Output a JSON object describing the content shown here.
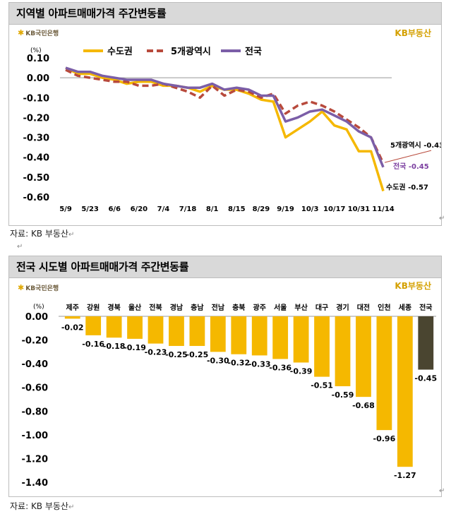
{
  "chart_data": [
    {
      "type": "line",
      "title": "지역별 아파트매매가격 주간변동률",
      "unit_label": "(%)",
      "ylim": [
        -0.6,
        0.1
      ],
      "y_ticks": [
        "0.10",
        "0.00",
        "-0.10",
        "-0.20",
        "-0.30",
        "-0.40",
        "-0.50",
        "-0.60"
      ],
      "x_tick_labels": [
        "5/9",
        "5/23",
        "6/6",
        "6/20",
        "7/4",
        "7/18",
        "8/1",
        "8/15",
        "8/29",
        "9/19",
        "10/3",
        "10/17",
        "10/31",
        "11/14"
      ],
      "x": [
        "5/9",
        "5/16",
        "5/23",
        "5/30",
        "6/6",
        "6/13",
        "6/20",
        "6/27",
        "7/4",
        "7/11",
        "7/18",
        "7/25",
        "8/1",
        "8/8",
        "8/15",
        "8/22",
        "8/29",
        "9/5",
        "9/19",
        "9/26",
        "10/3",
        "10/10",
        "10/17",
        "10/24",
        "10/31",
        "11/7",
        "11/14"
      ],
      "series": [
        {
          "name": "수도권",
          "color": "#f5b800",
          "dash": false,
          "values": [
            0.05,
            0.02,
            0.02,
            0.0,
            -0.01,
            -0.03,
            -0.02,
            -0.02,
            -0.04,
            -0.04,
            -0.05,
            -0.07,
            -0.04,
            -0.06,
            -0.06,
            -0.08,
            -0.11,
            -0.12,
            -0.3,
            -0.26,
            -0.22,
            -0.17,
            -0.24,
            -0.26,
            -0.37,
            -0.37,
            -0.57
          ]
        },
        {
          "name": "5개광역시",
          "color": "#b84a3c",
          "dash": true,
          "values": [
            0.04,
            0.01,
            0.0,
            -0.01,
            -0.02,
            -0.02,
            -0.04,
            -0.04,
            -0.03,
            -0.05,
            -0.07,
            -0.1,
            -0.04,
            -0.09,
            -0.06,
            -0.07,
            -0.1,
            -0.08,
            -0.18,
            -0.14,
            -0.12,
            -0.14,
            -0.17,
            -0.21,
            -0.25,
            -0.3,
            -0.43
          ]
        },
        {
          "name": "전국",
          "color": "#7b5ea7",
          "dash": false,
          "values": [
            0.05,
            0.03,
            0.03,
            0.01,
            0.0,
            -0.01,
            -0.01,
            -0.01,
            -0.03,
            -0.04,
            -0.05,
            -0.05,
            -0.03,
            -0.06,
            -0.05,
            -0.06,
            -0.09,
            -0.09,
            -0.22,
            -0.2,
            -0.17,
            -0.16,
            -0.19,
            -0.22,
            -0.27,
            -0.3,
            -0.45
          ]
        }
      ],
      "end_labels": [
        {
          "series": "5개광역시",
          "text": "5개광역시 -0.43",
          "color": "#000000"
        },
        {
          "series": "전국",
          "text": "전국 -0.45",
          "color": "#7b3fa0"
        },
        {
          "series": "수도권",
          "text": "수도권 -0.57",
          "color": "#000000"
        }
      ],
      "legend_placement": "top"
    },
    {
      "type": "bar",
      "title": "전국 시도별 아파트매매가격 주간변동률",
      "unit_label": "(%)",
      "ylim": [
        -1.4,
        0.0
      ],
      "y_ticks": [
        "0.00",
        "-0.20",
        "-0.40",
        "-0.60",
        "-0.80",
        "-1.00",
        "-1.20",
        "-1.40"
      ],
      "categories": [
        "제주",
        "강원",
        "경북",
        "울산",
        "전북",
        "경남",
        "충남",
        "전남",
        "충북",
        "광주",
        "서울",
        "부산",
        "대구",
        "경기",
        "대전",
        "인천",
        "세종",
        "전국"
      ],
      "values": [
        -0.02,
        -0.16,
        -0.18,
        -0.19,
        -0.23,
        -0.25,
        -0.25,
        -0.3,
        -0.32,
        -0.33,
        -0.36,
        -0.39,
        -0.51,
        -0.59,
        -0.68,
        -0.96,
        -1.27,
        -0.45
      ],
      "value_labels": [
        "-0.02",
        "-0.16",
        "-0.18",
        "-0.19",
        "-0.23",
        "-0.25",
        "-0.25",
        "-0.30",
        "-0.32",
        "-0.33",
        "-0.36",
        "-0.39",
        "-0.51",
        "-0.59",
        "-0.68",
        "-0.96",
        "-1.27",
        "-0.45"
      ],
      "bar_color": "#f5b800",
      "highlight_color": "#4a4530",
      "highlight_category": "전국"
    }
  ],
  "brand": {
    "left": "KB국민은행",
    "right": "KB부동산",
    "left_star": "✱"
  },
  "source_text": "자료: KB 부동산",
  "return_mark": "↵",
  "para_mark": "↵"
}
